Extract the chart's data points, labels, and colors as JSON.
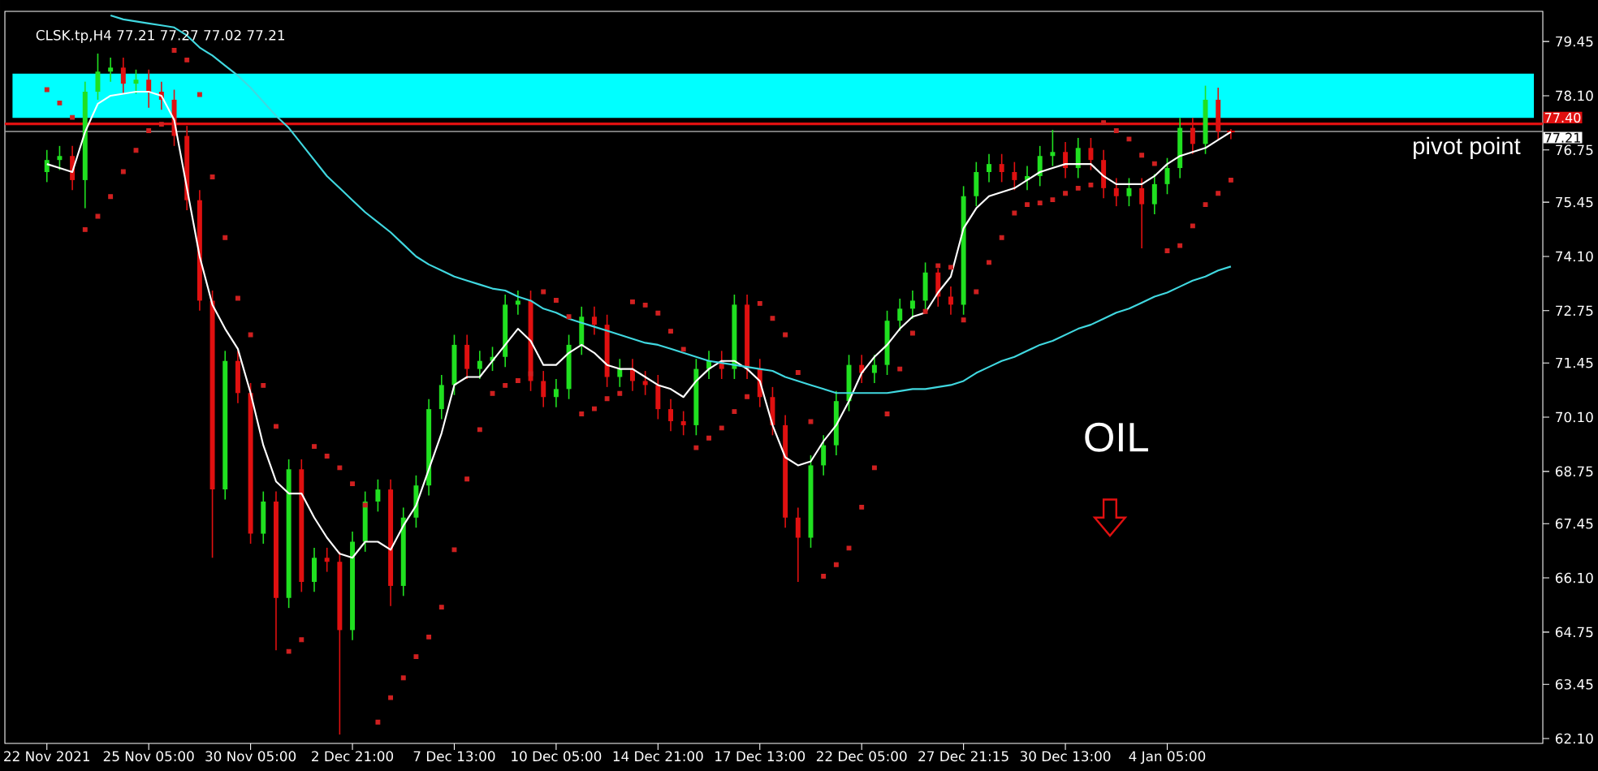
{
  "chart_data": {
    "type": "candlestick",
    "title": "CLSK.tp,H4 77.21 77.27 77.02 77.21",
    "categories": [
      "22 Nov 2021",
      null,
      null,
      null,
      null,
      null,
      null,
      null,
      "25 Nov 05:00",
      null,
      null,
      null,
      null,
      null,
      null,
      null,
      "30 Nov 05:00",
      null,
      null,
      null,
      null,
      null,
      null,
      null,
      "2 Dec 21:00",
      null,
      null,
      null,
      null,
      null,
      null,
      null,
      "7 Dec 13:00",
      null,
      null,
      null,
      null,
      null,
      null,
      null,
      "10 Dec 05:00",
      null,
      null,
      null,
      null,
      null,
      null,
      null,
      "14 Dec 21:00",
      null,
      null,
      null,
      null,
      null,
      null,
      null,
      "17 Dec 13:00",
      null,
      null,
      null,
      null,
      null,
      null,
      null,
      "22 Dec 05:00",
      null,
      null,
      null,
      null,
      null,
      null,
      null,
      "27 Dec 21:15",
      null,
      null,
      null,
      null,
      null,
      null,
      null,
      "30 Dec 13:00",
      null,
      null,
      null,
      null,
      null,
      null,
      null,
      "4 Jan 05:00",
      null,
      null,
      null,
      null,
      null
    ],
    "ohlc": [
      [
        76.2,
        76.75,
        75.95,
        76.5
      ],
      [
        76.5,
        76.85,
        76.25,
        76.6
      ],
      [
        76.6,
        76.85,
        75.75,
        76.0
      ],
      [
        76.0,
        78.45,
        75.3,
        78.2
      ],
      [
        78.2,
        79.15,
        78.0,
        78.7
      ],
      [
        78.7,
        79.05,
        78.45,
        78.8
      ],
      [
        78.8,
        79.05,
        78.15,
        78.4
      ],
      [
        78.4,
        78.75,
        78.15,
        78.5
      ],
      [
        78.5,
        78.75,
        77.8,
        78.2
      ],
      [
        78.2,
        78.45,
        77.75,
        78.0
      ],
      [
        78.0,
        78.25,
        76.85,
        77.1
      ],
      [
        77.1,
        77.35,
        75.25,
        75.5
      ],
      [
        75.5,
        75.75,
        72.75,
        73.0
      ],
      [
        73.0,
        73.25,
        66.6,
        68.3
      ],
      [
        68.3,
        71.75,
        68.05,
        71.5
      ],
      [
        71.5,
        71.75,
        70.45,
        70.7
      ],
      [
        70.7,
        70.95,
        66.95,
        67.2
      ],
      [
        67.2,
        68.25,
        66.95,
        68.0
      ],
      [
        68.0,
        68.25,
        64.3,
        65.6
      ],
      [
        65.6,
        69.05,
        65.35,
        68.8
      ],
      [
        68.8,
        69.05,
        65.75,
        66.0
      ],
      [
        66.0,
        66.85,
        65.75,
        66.6
      ],
      [
        66.6,
        66.85,
        66.25,
        66.5
      ],
      [
        66.5,
        66.75,
        62.2,
        64.8
      ],
      [
        64.8,
        67.25,
        64.55,
        67.0
      ],
      [
        67.0,
        68.25,
        66.75,
        68.0
      ],
      [
        68.0,
        68.55,
        67.75,
        68.3
      ],
      [
        68.3,
        68.55,
        65.4,
        65.9
      ],
      [
        65.9,
        67.85,
        65.65,
        67.6
      ],
      [
        67.6,
        68.65,
        67.35,
        68.4
      ],
      [
        68.4,
        70.55,
        68.15,
        70.3
      ],
      [
        70.3,
        71.15,
        70.05,
        70.9
      ],
      [
        70.9,
        72.15,
        70.65,
        71.9
      ],
      [
        71.9,
        72.15,
        71.05,
        71.3
      ],
      [
        71.3,
        71.75,
        71.05,
        71.5
      ],
      [
        71.5,
        71.85,
        71.25,
        71.6
      ],
      [
        71.6,
        73.15,
        71.35,
        72.9
      ],
      [
        72.9,
        73.25,
        72.65,
        73.0
      ],
      [
        73.0,
        73.25,
        70.75,
        71.0
      ],
      [
        71.0,
        71.25,
        70.35,
        70.6
      ],
      [
        70.6,
        71.05,
        70.35,
        70.8
      ],
      [
        70.8,
        72.15,
        70.55,
        71.9
      ],
      [
        71.9,
        72.85,
        71.65,
        72.6
      ],
      [
        72.6,
        72.85,
        72.15,
        72.4
      ],
      [
        72.4,
        72.65,
        70.85,
        71.1
      ],
      [
        71.1,
        71.55,
        70.85,
        71.3
      ],
      [
        71.3,
        71.55,
        70.75,
        71.0
      ],
      [
        71.0,
        71.25,
        70.65,
        70.9
      ],
      [
        70.9,
        71.15,
        70.05,
        70.3
      ],
      [
        70.3,
        70.55,
        69.75,
        70.0
      ],
      [
        70.0,
        70.25,
        69.65,
        69.9
      ],
      [
        69.9,
        71.55,
        69.65,
        71.3
      ],
      [
        71.3,
        71.75,
        71.05,
        71.5
      ],
      [
        71.5,
        71.75,
        71.05,
        71.3
      ],
      [
        71.3,
        73.15,
        71.05,
        72.9
      ],
      [
        72.9,
        73.15,
        71.05,
        71.3
      ],
      [
        71.3,
        71.55,
        70.35,
        70.6
      ],
      [
        70.6,
        70.85,
        69.65,
        69.9
      ],
      [
        69.9,
        70.15,
        67.35,
        67.6
      ],
      [
        67.6,
        67.85,
        66.0,
        67.1
      ],
      [
        67.1,
        69.15,
        66.85,
        68.9
      ],
      [
        68.9,
        69.65,
        68.65,
        69.4
      ],
      [
        69.4,
        70.75,
        69.15,
        70.5
      ],
      [
        70.5,
        71.65,
        70.25,
        71.4
      ],
      [
        71.4,
        71.65,
        70.95,
        71.2
      ],
      [
        71.2,
        71.65,
        70.95,
        71.4
      ],
      [
        71.4,
        72.75,
        71.15,
        72.5
      ],
      [
        72.5,
        73.05,
        72.25,
        72.8
      ],
      [
        72.8,
        73.25,
        72.55,
        73.0
      ],
      [
        73.0,
        73.95,
        72.75,
        73.7
      ],
      [
        73.7,
        73.8,
        72.85,
        73.1
      ],
      [
        73.1,
        73.35,
        72.65,
        72.9
      ],
      [
        72.9,
        75.85,
        72.65,
        75.6
      ],
      [
        75.6,
        76.45,
        75.35,
        76.2
      ],
      [
        76.2,
        76.65,
        75.95,
        76.4
      ],
      [
        76.4,
        76.65,
        75.95,
        76.2
      ],
      [
        76.2,
        76.45,
        75.75,
        76.0
      ],
      [
        76.0,
        76.35,
        75.75,
        76.1
      ],
      [
        76.1,
        76.85,
        75.85,
        76.6
      ],
      [
        76.6,
        77.25,
        76.35,
        76.7
      ],
      [
        76.7,
        76.95,
        76.05,
        76.3
      ],
      [
        76.3,
        77.05,
        76.05,
        76.8
      ],
      [
        76.8,
        77.05,
        76.25,
        76.5
      ],
      [
        76.5,
        76.75,
        75.55,
        75.8
      ],
      [
        75.8,
        76.05,
        75.35,
        75.6
      ],
      [
        75.6,
        76.05,
        75.35,
        75.8
      ],
      [
        75.8,
        76.05,
        74.3,
        75.4
      ],
      [
        75.4,
        76.15,
        75.15,
        75.9
      ],
      [
        75.9,
        76.55,
        75.65,
        76.3
      ],
      [
        76.3,
        77.55,
        76.05,
        77.3
      ],
      [
        77.3,
        77.55,
        76.65,
        76.9
      ],
      [
        76.9,
        78.35,
        76.65,
        78.0
      ],
      [
        78.0,
        78.3,
        77.0,
        77.21
      ],
      [
        77.21,
        77.27,
        77.02,
        77.21
      ]
    ],
    "series": [
      {
        "type": "line",
        "color": "#ffffff",
        "values": [
          76.4,
          76.3,
          76.2,
          77.2,
          77.9,
          78.1,
          78.15,
          78.2,
          78.2,
          78.1,
          77.5,
          75.8,
          74.1,
          72.9,
          72.3,
          71.8,
          70.7,
          69.4,
          68.5,
          68.2,
          68.2,
          67.6,
          67.1,
          66.7,
          66.6,
          67.0,
          67.0,
          66.8,
          67.4,
          67.9,
          68.8,
          69.7,
          70.9,
          71.1,
          71.1,
          71.5,
          71.9,
          72.3,
          72.0,
          71.4,
          71.4,
          71.7,
          71.9,
          71.7,
          71.4,
          71.3,
          71.3,
          71.1,
          70.9,
          70.8,
          70.6,
          71.0,
          71.3,
          71.5,
          71.5,
          71.3,
          71.0,
          69.9,
          69.1,
          68.9,
          69.0,
          69.5,
          69.9,
          70.5,
          71.2,
          71.6,
          71.9,
          72.3,
          72.6,
          72.7,
          73.2,
          73.6,
          74.8,
          75.3,
          75.6,
          75.7,
          75.8,
          76.0,
          76.2,
          76.3,
          76.4,
          76.4,
          76.4,
          76.1,
          75.9,
          75.9,
          75.9,
          76.1,
          76.4,
          76.6,
          76.7,
          76.8,
          77.0,
          77.2
        ]
      },
      {
        "type": "line",
        "color": "#40d8e0",
        "values": [
          null,
          null,
          null,
          null,
          null,
          80.1,
          80.0,
          79.95,
          79.9,
          79.85,
          79.8,
          79.6,
          79.3,
          79.1,
          78.85,
          78.6,
          78.3,
          77.95,
          77.6,
          77.3,
          76.9,
          76.5,
          76.1,
          75.8,
          75.5,
          75.2,
          74.95,
          74.7,
          74.4,
          74.1,
          73.9,
          73.75,
          73.6,
          73.5,
          73.4,
          73.3,
          73.25,
          73.1,
          73.0,
          72.8,
          72.7,
          72.55,
          72.45,
          72.35,
          72.25,
          72.15,
          72.05,
          71.95,
          71.9,
          71.8,
          71.7,
          71.6,
          71.5,
          71.45,
          71.4,
          71.35,
          71.3,
          71.25,
          71.1,
          71.0,
          70.9,
          70.8,
          70.7,
          70.7,
          70.7,
          70.7,
          70.7,
          70.75,
          70.8,
          70.8,
          70.85,
          70.9,
          71.0,
          71.2,
          71.35,
          71.5,
          71.6,
          71.75,
          71.9,
          72.0,
          72.15,
          72.3,
          72.4,
          72.55,
          72.7,
          72.8,
          72.95,
          73.1,
          73.2,
          73.35,
          73.5,
          73.6,
          73.75,
          73.85
        ]
      },
      {
        "type": "scatter",
        "marker": "square",
        "color": "#d02020",
        "values": [
          78.25,
          77.92,
          77.56,
          74.77,
          75.1,
          75.59,
          76.21,
          76.74,
          77.23,
          77.39,
          79.23,
          78.99,
          78.13,
          76.08,
          74.57,
          73.06,
          72.15,
          70.89,
          69.87,
          64.27,
          64.56,
          69.37,
          69.13,
          68.84,
          68.44,
          67.91,
          62.51,
          63.12,
          63.61,
          64.14,
          64.63,
          65.37,
          66.8,
          68.56,
          69.79,
          70.69,
          70.89,
          71.01,
          71.18,
          73.22,
          73.01,
          72.6,
          70.18,
          70.31,
          70.56,
          70.69,
          72.97,
          72.89,
          72.69,
          72.24,
          71.79,
          69.34,
          69.58,
          69.83,
          70.24,
          70.61,
          72.93,
          72.56,
          72.15,
          71.21,
          69.99,
          66.14,
          66.43,
          66.84,
          67.86,
          68.84,
          70.18,
          71.3,
          72.19,
          72.73,
          73.87,
          73.83,
          72.52,
          73.22,
          73.95,
          74.57,
          75.18,
          75.39,
          75.43,
          75.51,
          75.67,
          75.8,
          75.88,
          77.43,
          77.23,
          77.02,
          76.62,
          76.41,
          74.24,
          74.37,
          74.86,
          75.39,
          75.67,
          76.0
        ]
      }
    ],
    "ylim": [
      61.98,
      80.2
    ],
    "yticks": [
      {
        "value": 62.1,
        "label": "62.10"
      },
      {
        "value": 63.45,
        "label": "63.45"
      },
      {
        "value": 64.75,
        "label": "64.75"
      },
      {
        "value": 66.1,
        "label": "66.10"
      },
      {
        "value": 67.45,
        "label": "67.45"
      },
      {
        "value": 68.75,
        "label": "68.75"
      },
      {
        "value": 70.1,
        "label": "70.10"
      },
      {
        "value": 71.45,
        "label": "71.45"
      },
      {
        "value": 72.75,
        "label": "72.75"
      },
      {
        "value": 74.1,
        "label": "74.10"
      },
      {
        "value": 75.45,
        "label": "75.45"
      },
      {
        "value": 76.75,
        "label": "76.75"
      },
      {
        "value": 78.1,
        "label": "78.10"
      },
      {
        "value": 79.45,
        "label": "79.45"
      }
    ],
    "bands": [
      {
        "axis": "y",
        "from": 77.55,
        "to": 78.65,
        "color": "#00ffff"
      }
    ],
    "ref_lines": [
      {
        "axis": "y",
        "value": 77.4,
        "label": "77.40",
        "color": "#e01010"
      },
      {
        "axis": "y",
        "value": 77.21,
        "label": "77.21",
        "color": "#a0a0a0"
      }
    ],
    "annotations": [
      "pivot point",
      "OIL"
    ]
  }
}
